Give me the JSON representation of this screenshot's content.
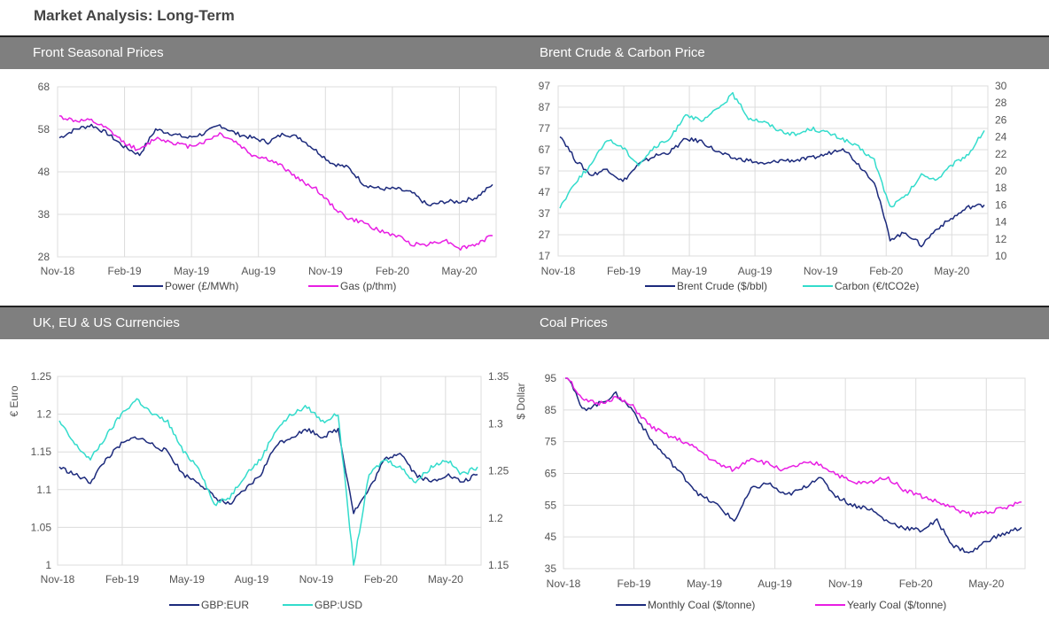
{
  "page": {
    "title": "Market Analysis: Long-Term"
  },
  "colors": {
    "navy": "#1c2a7c",
    "magenta": "#e81ee3",
    "cyan": "#33dccc",
    "grid": "#dcdcdc",
    "header": "#7f7f7f"
  },
  "chart_data": [
    {
      "id": "front-seasonal",
      "title": "Front Seasonal Prices",
      "type": "line",
      "x_ticks": [
        "Nov-18",
        "Feb-19",
        "May-19",
        "Aug-19",
        "Nov-19",
        "Feb-20",
        "May-20"
      ],
      "y_left": {
        "min": 28,
        "max": 68,
        "ticks": [
          28,
          38,
          48,
          58,
          68
        ]
      },
      "series": [
        {
          "name": "Power (£/MWh)",
          "color": "#1c2a7c",
          "axis": "left",
          "values": [
            56,
            58,
            59,
            57,
            54,
            52,
            58,
            57,
            56,
            57,
            59,
            57,
            56,
            55,
            57,
            56,
            53,
            50,
            49,
            45,
            44,
            44,
            43,
            40,
            41,
            41,
            42,
            45
          ]
        },
        {
          "name": "Gas (p/thm)",
          "color": "#e81ee3",
          "axis": "left",
          "values": [
            61,
            60,
            60,
            58,
            55,
            53,
            56,
            55,
            54,
            55,
            57,
            55,
            52,
            51,
            49,
            46,
            44,
            40,
            37,
            36,
            34,
            33,
            31,
            31,
            32,
            30,
            31,
            33
          ]
        }
      ]
    },
    {
      "id": "brent-carbon",
      "title": "Brent Crude & Carbon Price",
      "type": "line",
      "x_ticks": [
        "Nov-18",
        "Feb-19",
        "May-19",
        "Aug-19",
        "Nov-19",
        "Feb-20",
        "May-20"
      ],
      "y_left": {
        "min": 17,
        "max": 97,
        "ticks": [
          17,
          27,
          37,
          47,
          57,
          67,
          77,
          87,
          97
        ]
      },
      "y_right": {
        "min": 10,
        "max": 30,
        "ticks": [
          10,
          12,
          14,
          16,
          18,
          20,
          22,
          24,
          26,
          28,
          30
        ]
      },
      "series": [
        {
          "name": "Brent Crude ($/bbl)",
          "color": "#1c2a7c",
          "axis": "left",
          "values": [
            74,
            62,
            55,
            58,
            52,
            60,
            64,
            66,
            72,
            71,
            66,
            63,
            62,
            60,
            62,
            62,
            63,
            65,
            68,
            60,
            52,
            25,
            28,
            22,
            30,
            35,
            40,
            41
          ]
        },
        {
          "name": "Carbon (€/tCO2e)",
          "color": "#33dccc",
          "axis": "left",
          "values": [
            40,
            52,
            60,
            72,
            68,
            60,
            68,
            72,
            84,
            80,
            86,
            93,
            82,
            80,
            76,
            74,
            77,
            75,
            72,
            68,
            62,
            40,
            45,
            55,
            53,
            60,
            65,
            76
          ]
        }
      ]
    },
    {
      "id": "currencies",
      "title": "UK, EU & US Currencies",
      "type": "line",
      "x_ticks": [
        "Nov-18",
        "Feb-19",
        "May-19",
        "Aug-19",
        "Nov-19",
        "Feb-20",
        "May-20"
      ],
      "y_left": {
        "min": 1,
        "max": 1.25,
        "ticks": [
          "1",
          "1.05",
          "1.1",
          "1.15",
          "1.2",
          "1.25"
        ],
        "label": "€ Euro"
      },
      "y_right": {
        "min": 1.15,
        "max": 1.35,
        "ticks": [
          "1.15",
          "1.2",
          "1.25",
          "1.3",
          "1.35"
        ],
        "label": "$ Dollar"
      },
      "series": [
        {
          "name": "GBP:EUR",
          "color": "#1c2a7c",
          "axis": "left",
          "values": [
            1.13,
            1.12,
            1.11,
            1.14,
            1.16,
            1.17,
            1.16,
            1.15,
            1.12,
            1.11,
            1.09,
            1.08,
            1.1,
            1.12,
            1.16,
            1.17,
            1.18,
            1.17,
            1.18,
            1.07,
            1.1,
            1.14,
            1.15,
            1.12,
            1.11,
            1.12,
            1.11,
            1.12
          ]
        },
        {
          "name": "GBP:USD",
          "color": "#33dccc",
          "axis": "left",
          "values": [
            1.19,
            1.16,
            1.14,
            1.17,
            1.2,
            1.22,
            1.2,
            1.19,
            1.15,
            1.13,
            1.08,
            1.09,
            1.12,
            1.14,
            1.18,
            1.2,
            1.21,
            1.19,
            1.2,
            1.0,
            1.12,
            1.14,
            1.13,
            1.11,
            1.13,
            1.14,
            1.12,
            1.13
          ]
        }
      ]
    },
    {
      "id": "coal",
      "title": "Coal Prices",
      "type": "line",
      "x_ticks": [
        "Nov-18",
        "Feb-19",
        "May-19",
        "Aug-19",
        "Nov-19",
        "Feb-20",
        "May-20"
      ],
      "y_left": {
        "min": 35,
        "max": 95,
        "ticks": [
          35,
          45,
          55,
          65,
          75,
          85,
          95
        ]
      },
      "series": [
        {
          "name": "Monthly Coal ($/tonne)",
          "color": "#1c2a7c",
          "axis": "left",
          "values": [
            98,
            85,
            87,
            90,
            85,
            76,
            70,
            64,
            58,
            55,
            50,
            60,
            62,
            58,
            60,
            64,
            58,
            55,
            54,
            50,
            48,
            47,
            50,
            42,
            40,
            44,
            46,
            48
          ]
        },
        {
          "name": "Yearly Coal ($/tonne)",
          "color": "#e81ee3",
          "axis": "left",
          "values": [
            97,
            88,
            87,
            89,
            86,
            80,
            77,
            75,
            72,
            68,
            66,
            70,
            68,
            66,
            68,
            68,
            65,
            62,
            62,
            64,
            60,
            58,
            56,
            54,
            52,
            53,
            54,
            56
          ]
        }
      ]
    }
  ]
}
